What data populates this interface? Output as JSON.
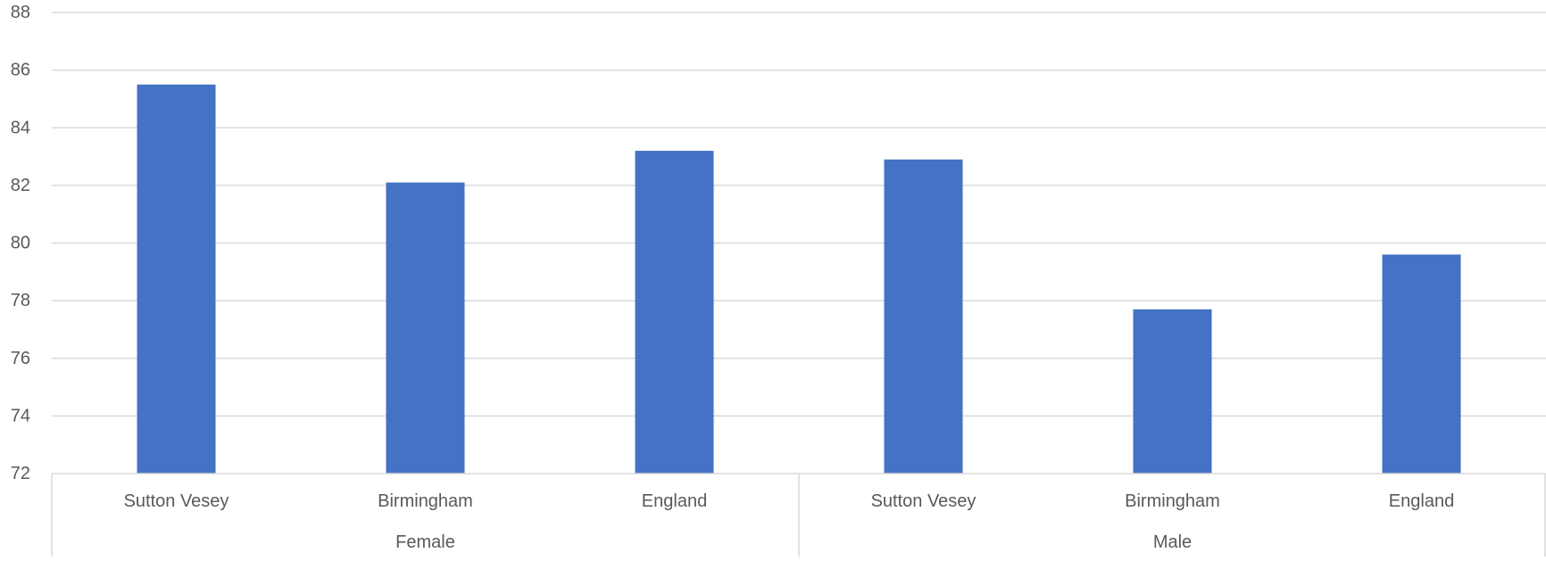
{
  "chart_data": {
    "type": "bar",
    "title": "",
    "xlabel": "",
    "ylabel": "",
    "ylim": [
      72,
      88
    ],
    "yticks": [
      72,
      74,
      76,
      78,
      80,
      82,
      84,
      86,
      88
    ],
    "grid": true,
    "legend": "none",
    "groups": [
      {
        "name": "Female",
        "categories": [
          "Sutton Vesey",
          "Birmingham",
          "England"
        ],
        "values": [
          85.5,
          82.1,
          83.2
        ]
      },
      {
        "name": "Male",
        "categories": [
          "Sutton Vesey",
          "Birmingham",
          "England"
        ],
        "values": [
          82.9,
          77.7,
          79.6
        ]
      }
    ],
    "colors": {
      "bar": "#4472C4",
      "grid": "#D9D9D9",
      "text": "#595959",
      "axis": "#D9D9D9"
    }
  }
}
